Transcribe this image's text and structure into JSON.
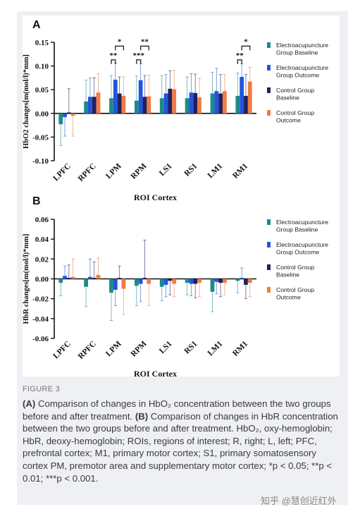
{
  "figure": {
    "label": "FIGURE 3",
    "caption_parts": [
      {
        "text": "(A)",
        "bold": true
      },
      {
        "text": " Comparison of changes in HbO₂ concentration between the two groups before and after treatment. ",
        "bold": false
      },
      {
        "text": "(B)",
        "bold": true
      },
      {
        "text": " Comparison of changes in HbR concentration between the two groups before and after treatment. HbO₂, oxy-hemoglobin; HbR, deoxy-hemoglobin; ROIs, regions of interest; R, right; L, left; PFC, prefrontal cortex; M1, primary motor cortex; S1, primary somatosensory cortex PM, premotor area and supplementary motor cortex; *p < 0.05; **p < 0.01; ***p < 0.001.",
        "bold": false
      }
    ],
    "watermark": "知乎 @慧创近红外"
  },
  "colors": [
    "#1e8a8a",
    "#2255dd",
    "#22205a",
    "#f07b45"
  ],
  "chart_data": [
    {
      "panel": "A",
      "type": "bar",
      "categories": [
        "LPFC",
        "RPFC",
        "LPM",
        "RPM",
        "LS1",
        "RS1",
        "LM1",
        "RM1"
      ],
      "xlabel": "ROI Cortex",
      "ylabel": "HbO2 changes[m(mol/l)*mm]",
      "ylim": [
        -0.1,
        0.15
      ],
      "yticks": [
        "-0.10",
        "-0.05",
        "0.00",
        "0.05",
        "0.10",
        "0.15"
      ],
      "legend_position": "right",
      "series": [
        {
          "name": "Electroacupuncture Group Baseline",
          "values": [
            -0.023,
            0.025,
            0.032,
            0.027,
            0.032,
            0.032,
            0.042,
            0.037
          ],
          "errors": [
            0.045,
            0.045,
            0.048,
            0.052,
            0.048,
            0.045,
            0.045,
            0.048
          ]
        },
        {
          "name": "Electroacupuncture Group Outcome",
          "values": [
            -0.008,
            0.035,
            0.071,
            0.07,
            0.042,
            0.044,
            0.047,
            0.077
          ],
          "errors": [
            0.04,
            0.04,
            0.035,
            0.035,
            0.04,
            0.04,
            0.048,
            0.028
          ]
        },
        {
          "name": "Control Group Baseline",
          "values": [
            0.002,
            0.035,
            0.042,
            0.035,
            0.052,
            0.043,
            0.042,
            0.037
          ],
          "errors": [
            0.05,
            0.04,
            0.035,
            0.045,
            0.038,
            0.04,
            0.04,
            0.045
          ]
        },
        {
          "name": "Control Group Outcome",
          "values": [
            -0.005,
            0.044,
            0.037,
            0.036,
            0.051,
            0.034,
            0.047,
            0.067
          ],
          "errors": [
            0.043,
            0.04,
            0.04,
            0.045,
            0.04,
            0.04,
            0.035,
            0.03
          ]
        }
      ],
      "significance": [
        {
          "cat": "LPM",
          "from": 0,
          "to": 1,
          "label": "**",
          "level": 0
        },
        {
          "cat": "LPM",
          "from": 1,
          "to": 3,
          "label": "*",
          "level": 1
        },
        {
          "cat": "RPM",
          "from": 0,
          "to": 1,
          "label": "***",
          "level": 0
        },
        {
          "cat": "RPM",
          "from": 1,
          "to": 3,
          "label": "**",
          "level": 1
        },
        {
          "cat": "RM1",
          "from": 0,
          "to": 1,
          "label": "**",
          "level": 0
        },
        {
          "cat": "RM1",
          "from": 1,
          "to": 3,
          "label": "*",
          "level": 1
        }
      ]
    },
    {
      "panel": "B",
      "type": "bar",
      "categories": [
        "LPFC",
        "RPFC",
        "LPM",
        "RPM",
        "LS1",
        "RS1",
        "LM1",
        "RM1"
      ],
      "xlabel": "ROI Cortex",
      "ylabel": "HbR changes[m(mol/l)*mm]",
      "ylim": [
        -0.06,
        0.06
      ],
      "yticks": [
        "-0.06",
        "-0.04",
        "-0.02",
        "0.00",
        "0.02",
        "0.04",
        "0.06"
      ],
      "legend_position": "right",
      "series": [
        {
          "name": "Electroacupuncture Group Baseline",
          "values": [
            -0.004,
            -0.008,
            -0.014,
            -0.007,
            -0.008,
            -0.004,
            -0.013,
            -0.002
          ],
          "errors": [
            0.013,
            0.02,
            0.028,
            0.02,
            0.014,
            0.012,
            0.02,
            0.012
          ]
        },
        {
          "name": "Electroacupuncture Group Outcome",
          "values": [
            0.003,
            0.002,
            -0.011,
            -0.005,
            -0.006,
            -0.005,
            -0.003,
            0.001
          ],
          "errors": [
            0.01,
            0.018,
            0.016,
            0.018,
            0.012,
            0.012,
            0.012,
            0.01
          ]
        },
        {
          "name": "Control Group Baseline",
          "values": [
            0.001,
            0.001,
            0.001,
            0.001,
            -0.002,
            -0.005,
            -0.004,
            -0.006
          ],
          "errors": [
            0.013,
            0.016,
            0.012,
            0.038,
            0.014,
            0.014,
            0.014,
            0.014
          ]
        },
        {
          "name": "Control Group Outcome",
          "values": [
            0.002,
            0.004,
            -0.01,
            -0.005,
            -0.005,
            -0.004,
            -0.004,
            -0.004
          ],
          "errors": [
            0.018,
            0.017,
            0.026,
            0.022,
            0.013,
            0.014,
            0.012,
            0.014
          ]
        }
      ],
      "significance": []
    }
  ]
}
